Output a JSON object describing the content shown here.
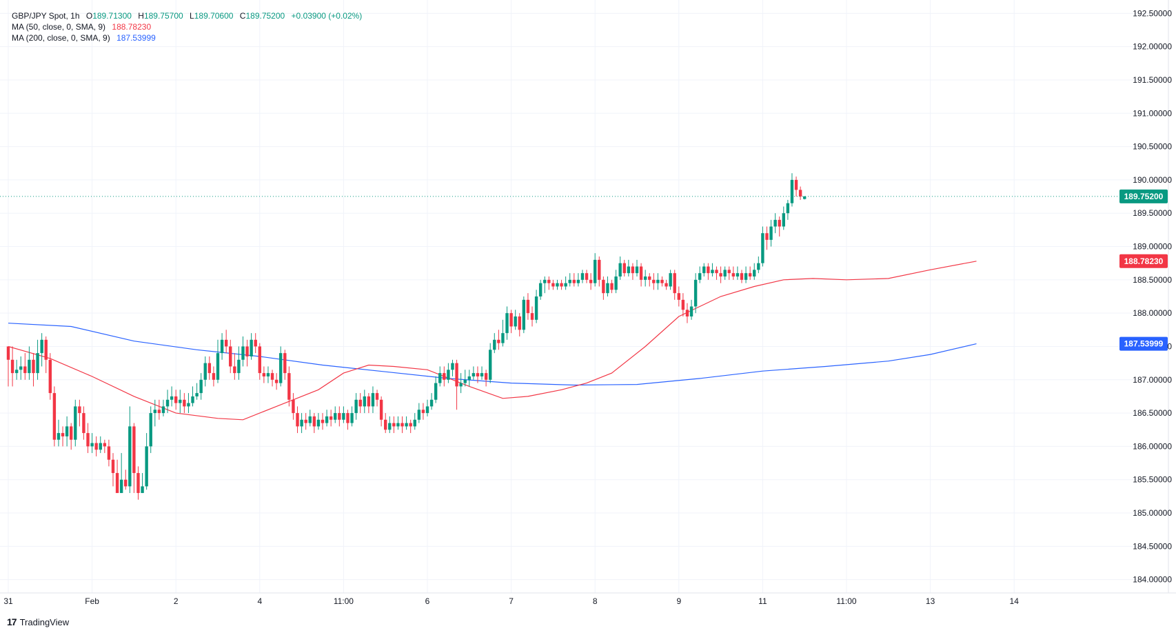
{
  "legend": {
    "symbol": "GBP/JPY Spot, 1h",
    "open_label": "O",
    "open": "189.71300",
    "high_label": "H",
    "high": "189.75700",
    "low_label": "L",
    "low": "189.70600",
    "close_label": "C",
    "close": "189.75200",
    "change": "+0.03900 (+0.02%)",
    "ma50_label": "MA (50, close, 0, SMA, 9)",
    "ma50_value": "188.78230",
    "ma200_label": "MA (200, close, 0, SMA, 9)",
    "ma200_value": "187.53999"
  },
  "brand": {
    "logo": "17",
    "name": "TradingView"
  },
  "colors": {
    "up": "#089981",
    "down": "#f23645",
    "ma50": "#f23645",
    "ma200": "#2962ff",
    "grid": "#f0f3fa"
  },
  "chart_data": {
    "type": "candlestick",
    "title": "GBP/JPY Spot, 1h",
    "ylim": [
      183.8,
      192.7
    ],
    "y_ticks": [
      "192.50000",
      "192.00000",
      "191.50000",
      "191.00000",
      "190.50000",
      "190.00000",
      "189.50000",
      "189.00000",
      "188.50000",
      "188.00000",
      "187.50000",
      "187.00000",
      "186.50000",
      "186.00000",
      "185.50000",
      "185.00000",
      "184.50000",
      "184.00000"
    ],
    "x_tick_labels": [
      "31",
      "Feb",
      "2",
      "4",
      "11:00",
      "6",
      "7",
      "8",
      "9",
      "11",
      "11:00",
      "13",
      "14"
    ],
    "x_tick_bar_index": [
      0,
      20,
      40,
      60,
      80,
      100,
      120,
      140,
      160,
      180,
      200,
      220,
      240
    ],
    "last_price": 189.752,
    "last_price_label": "189.75200",
    "series": [
      {
        "name": "MA (50, close, 0, SMA, 9)",
        "last_label": "188.78230",
        "points": [
          [
            0,
            187.5
          ],
          [
            10,
            187.32
          ],
          [
            20,
            187.05
          ],
          [
            30,
            186.75
          ],
          [
            40,
            186.5
          ],
          [
            50,
            186.42
          ],
          [
            56,
            186.4
          ],
          [
            64,
            186.6
          ],
          [
            74,
            186.85
          ],
          [
            80,
            187.1
          ],
          [
            86,
            187.22
          ],
          [
            92,
            187.2
          ],
          [
            100,
            187.15
          ],
          [
            110,
            186.9
          ],
          [
            118,
            186.72
          ],
          [
            124,
            186.75
          ],
          [
            132,
            186.85
          ],
          [
            138,
            186.95
          ],
          [
            144,
            187.1
          ],
          [
            152,
            187.5
          ],
          [
            160,
            187.95
          ],
          [
            170,
            188.25
          ],
          [
            178,
            188.4
          ],
          [
            185,
            188.5
          ],
          [
            192,
            188.52
          ],
          [
            200,
            188.5
          ],
          [
            210,
            188.52
          ],
          [
            220,
            188.65
          ],
          [
            231,
            188.78
          ]
        ]
      },
      {
        "name": "MA (200, close, 0, SMA, 9)",
        "last_label": "187.53999",
        "points": [
          [
            0,
            187.85
          ],
          [
            15,
            187.8
          ],
          [
            30,
            187.58
          ],
          [
            45,
            187.45
          ],
          [
            60,
            187.35
          ],
          [
            75,
            187.22
          ],
          [
            90,
            187.12
          ],
          [
            105,
            187.02
          ],
          [
            120,
            186.95
          ],
          [
            135,
            186.92
          ],
          [
            150,
            186.93
          ],
          [
            165,
            187.02
          ],
          [
            180,
            187.13
          ],
          [
            195,
            187.2
          ],
          [
            210,
            187.28
          ],
          [
            220,
            187.38
          ],
          [
            231,
            187.54
          ]
        ]
      }
    ],
    "candles": [
      [
        187.5,
        187.3,
        187.4,
        186.9
      ],
      [
        187.3,
        187.1,
        187.5,
        186.9
      ],
      [
        187.1,
        187.15,
        187.3,
        187.0
      ],
      [
        187.15,
        187.2,
        187.35,
        187.0
      ],
      [
        187.2,
        187.1,
        187.4,
        187.0
      ],
      [
        187.1,
        187.3,
        187.5,
        187.0
      ],
      [
        187.3,
        187.1,
        187.4,
        186.9
      ],
      [
        187.1,
        187.4,
        187.6,
        187.0
      ],
      [
        187.4,
        187.6,
        187.7,
        187.2
      ],
      [
        187.6,
        187.3,
        187.65,
        187.1
      ],
      [
        187.3,
        186.8,
        187.4,
        186.7
      ],
      [
        186.8,
        186.1,
        186.9,
        186.0
      ],
      [
        186.1,
        186.2,
        186.4,
        186.0
      ],
      [
        186.2,
        186.15,
        186.3,
        186.0
      ],
      [
        186.15,
        186.3,
        186.45,
        186.0
      ],
      [
        186.3,
        186.1,
        186.35,
        185.95
      ],
      [
        186.1,
        186.6,
        186.7,
        186.0
      ],
      [
        186.6,
        186.5,
        186.7,
        186.3
      ],
      [
        186.5,
        186.2,
        186.6,
        186.1
      ],
      [
        186.2,
        186.0,
        186.35,
        185.9
      ],
      [
        186.0,
        186.05,
        186.2,
        185.9
      ],
      [
        186.05,
        185.95,
        186.15,
        185.85
      ],
      [
        185.95,
        186.05,
        186.15,
        185.9
      ],
      [
        186.05,
        186.0,
        186.1,
        185.9
      ],
      [
        186.0,
        185.8,
        186.1,
        185.7
      ],
      [
        185.8,
        185.6,
        185.9,
        185.4
      ],
      [
        185.6,
        185.3,
        185.8,
        185.3
      ],
      [
        185.3,
        185.5,
        185.9,
        185.3
      ],
      [
        185.5,
        185.4,
        185.65,
        185.35
      ],
      [
        185.4,
        186.3,
        186.6,
        185.3
      ],
      [
        186.3,
        185.6,
        186.35,
        185.3
      ],
      [
        185.6,
        185.3,
        185.7,
        185.2
      ],
      [
        185.3,
        185.4,
        185.6,
        185.3
      ],
      [
        185.4,
        186.0,
        186.2,
        185.35
      ],
      [
        186.0,
        186.5,
        186.6,
        185.9
      ],
      [
        186.5,
        186.55,
        186.7,
        186.3
      ],
      [
        186.55,
        186.5,
        186.7,
        186.4
      ],
      [
        186.5,
        186.6,
        186.7,
        186.45
      ],
      [
        186.6,
        186.7,
        186.85,
        186.5
      ],
      [
        186.7,
        186.75,
        186.9,
        186.6
      ],
      [
        186.75,
        186.65,
        186.85,
        186.55
      ],
      [
        186.65,
        186.7,
        186.85,
        186.5
      ],
      [
        186.7,
        186.6,
        186.8,
        186.5
      ],
      [
        186.6,
        186.65,
        186.8,
        186.5
      ],
      [
        186.65,
        186.75,
        186.9,
        186.6
      ],
      [
        186.75,
        186.8,
        186.95,
        186.7
      ],
      [
        186.8,
        187.0,
        187.1,
        186.7
      ],
      [
        187.0,
        187.25,
        187.35,
        186.9
      ],
      [
        187.25,
        187.1,
        187.35,
        187.0
      ],
      [
        187.1,
        187.0,
        187.2,
        186.9
      ],
      [
        187.0,
        187.4,
        187.6,
        186.95
      ],
      [
        187.4,
        187.6,
        187.7,
        187.3
      ],
      [
        187.6,
        187.5,
        187.75,
        187.4
      ],
      [
        187.5,
        187.2,
        187.6,
        187.1
      ],
      [
        187.2,
        187.1,
        187.4,
        187.0
      ],
      [
        187.1,
        187.3,
        187.5,
        187.0
      ],
      [
        187.3,
        187.5,
        187.65,
        187.2
      ],
      [
        187.5,
        187.35,
        187.6,
        187.2
      ],
      [
        187.35,
        187.6,
        187.7,
        187.3
      ],
      [
        187.6,
        187.5,
        187.7,
        187.4
      ],
      [
        187.5,
        187.1,
        187.55,
        187.0
      ],
      [
        187.1,
        187.05,
        187.2,
        186.95
      ],
      [
        187.05,
        187.1,
        187.2,
        186.95
      ],
      [
        187.1,
        187.0,
        187.15,
        186.9
      ],
      [
        187.0,
        186.95,
        187.1,
        186.85
      ],
      [
        186.95,
        187.4,
        187.5,
        186.9
      ],
      [
        187.4,
        187.1,
        187.45,
        187.0
      ],
      [
        187.1,
        186.7,
        187.2,
        186.6
      ],
      [
        186.7,
        186.5,
        186.8,
        186.4
      ],
      [
        186.5,
        186.3,
        186.6,
        186.2
      ],
      [
        186.3,
        186.4,
        186.5,
        186.2
      ],
      [
        186.4,
        186.35,
        186.5,
        186.25
      ],
      [
        186.35,
        186.45,
        186.55,
        186.3
      ],
      [
        186.45,
        186.3,
        186.5,
        186.2
      ],
      [
        186.3,
        186.4,
        186.5,
        186.25
      ],
      [
        186.4,
        186.35,
        186.5,
        186.25
      ],
      [
        186.35,
        186.45,
        186.55,
        186.3
      ],
      [
        186.45,
        186.4,
        186.55,
        186.3
      ],
      [
        186.4,
        186.5,
        186.6,
        186.35
      ],
      [
        186.5,
        186.4,
        186.6,
        186.3
      ],
      [
        186.4,
        186.5,
        186.6,
        186.35
      ],
      [
        186.5,
        186.35,
        186.55,
        186.25
      ],
      [
        186.35,
        186.5,
        186.6,
        186.3
      ],
      [
        186.5,
        186.7,
        186.8,
        186.4
      ],
      [
        186.7,
        186.6,
        186.8,
        186.5
      ],
      [
        186.6,
        186.75,
        186.85,
        186.5
      ],
      [
        186.75,
        186.6,
        186.8,
        186.5
      ],
      [
        186.6,
        186.8,
        186.9,
        186.5
      ],
      [
        186.8,
        186.7,
        186.85,
        186.6
      ],
      [
        186.7,
        186.4,
        186.75,
        186.3
      ],
      [
        186.4,
        186.25,
        186.5,
        186.2
      ],
      [
        186.25,
        186.35,
        186.45,
        186.2
      ],
      [
        186.35,
        186.3,
        186.45,
        186.2
      ],
      [
        186.3,
        186.35,
        186.45,
        186.25
      ],
      [
        186.35,
        186.3,
        186.45,
        186.2
      ],
      [
        186.3,
        186.35,
        186.45,
        186.25
      ],
      [
        186.35,
        186.3,
        186.4,
        186.2
      ],
      [
        186.3,
        186.4,
        186.5,
        186.25
      ],
      [
        186.4,
        186.55,
        186.65,
        186.35
      ],
      [
        186.55,
        186.5,
        186.65,
        186.4
      ],
      [
        186.5,
        186.6,
        186.7,
        186.45
      ],
      [
        186.6,
        186.7,
        186.8,
        186.55
      ],
      [
        186.7,
        186.95,
        187.05,
        186.65
      ],
      [
        186.95,
        187.1,
        187.2,
        186.9
      ],
      [
        187.1,
        187.0,
        187.2,
        186.9
      ],
      [
        187.0,
        187.15,
        187.25,
        186.95
      ],
      [
        187.15,
        187.25,
        187.3,
        187.05
      ],
      [
        187.25,
        186.9,
        187.3,
        186.55
      ],
      [
        186.9,
        186.95,
        187.1,
        186.8
      ],
      [
        186.95,
        187.0,
        187.15,
        186.9
      ],
      [
        187.0,
        187.05,
        187.15,
        186.9
      ],
      [
        187.05,
        187.1,
        187.2,
        187.0
      ],
      [
        187.1,
        187.05,
        187.2,
        186.95
      ],
      [
        187.05,
        187.1,
        187.2,
        187.0
      ],
      [
        187.1,
        187.0,
        187.15,
        186.9
      ],
      [
        187.0,
        187.45,
        187.55,
        186.95
      ],
      [
        187.45,
        187.6,
        187.7,
        187.4
      ],
      [
        187.6,
        187.55,
        187.75,
        187.45
      ],
      [
        187.55,
        187.7,
        187.9,
        187.5
      ],
      [
        187.7,
        188.0,
        188.1,
        187.6
      ],
      [
        188.0,
        187.8,
        188.05,
        187.7
      ],
      [
        187.8,
        187.95,
        188.05,
        187.75
      ],
      [
        187.95,
        187.75,
        188.0,
        187.65
      ],
      [
        187.75,
        188.2,
        188.25,
        187.7
      ],
      [
        188.2,
        188.0,
        188.3,
        187.9
      ],
      [
        188.0,
        187.9,
        188.1,
        187.8
      ],
      [
        187.9,
        188.25,
        188.35,
        187.85
      ],
      [
        188.25,
        188.45,
        188.5,
        188.2
      ],
      [
        188.45,
        188.5,
        188.55,
        188.3
      ],
      [
        188.5,
        188.45,
        188.55,
        188.35
      ],
      [
        188.45,
        188.4,
        188.5,
        188.35
      ],
      [
        188.4,
        188.45,
        188.5,
        188.35
      ],
      [
        188.45,
        188.4,
        188.5,
        188.35
      ],
      [
        188.4,
        188.45,
        188.55,
        188.35
      ],
      [
        188.45,
        188.5,
        188.6,
        188.4
      ],
      [
        188.5,
        188.45,
        188.6,
        188.4
      ],
      [
        188.45,
        188.5,
        188.6,
        188.4
      ],
      [
        188.5,
        188.6,
        188.65,
        188.45
      ],
      [
        188.6,
        188.5,
        188.65,
        188.45
      ],
      [
        188.5,
        188.45,
        188.6,
        188.35
      ],
      [
        188.45,
        188.8,
        188.9,
        188.4
      ],
      [
        188.8,
        188.5,
        188.85,
        188.4
      ],
      [
        188.5,
        188.3,
        188.55,
        188.2
      ],
      [
        188.3,
        188.45,
        188.55,
        188.25
      ],
      [
        188.45,
        188.35,
        188.5,
        188.3
      ],
      [
        188.35,
        188.55,
        188.65,
        188.3
      ],
      [
        188.55,
        188.75,
        188.85,
        188.5
      ],
      [
        188.75,
        188.6,
        188.8,
        188.55
      ],
      [
        188.6,
        188.7,
        188.8,
        188.55
      ],
      [
        188.7,
        188.6,
        188.75,
        188.5
      ],
      [
        188.6,
        188.7,
        188.8,
        188.55
      ],
      [
        188.7,
        188.5,
        188.75,
        188.4
      ],
      [
        188.5,
        188.55,
        188.65,
        188.4
      ],
      [
        188.55,
        188.5,
        188.6,
        188.4
      ],
      [
        188.5,
        188.45,
        188.6,
        188.35
      ],
      [
        188.45,
        188.5,
        188.6,
        188.35
      ],
      [
        188.5,
        188.45,
        188.55,
        188.4
      ],
      [
        188.45,
        188.4,
        188.5,
        188.35
      ],
      [
        188.4,
        188.6,
        188.65,
        188.35
      ],
      [
        188.6,
        188.3,
        188.65,
        188.2
      ],
      [
        188.3,
        188.2,
        188.4,
        188.1
      ],
      [
        188.2,
        188.05,
        188.3,
        187.95
      ],
      [
        188.05,
        187.95,
        188.15,
        187.85
      ],
      [
        187.95,
        188.1,
        188.2,
        187.9
      ],
      [
        188.1,
        188.5,
        188.6,
        188.0
      ],
      [
        188.5,
        188.6,
        188.7,
        188.45
      ],
      [
        188.6,
        188.7,
        188.75,
        188.55
      ],
      [
        188.7,
        188.6,
        188.75,
        188.5
      ],
      [
        188.6,
        188.65,
        188.75,
        188.55
      ],
      [
        188.65,
        188.6,
        188.7,
        188.5
      ],
      [
        188.6,
        188.55,
        188.7,
        188.45
      ],
      [
        188.55,
        188.65,
        188.7,
        188.5
      ],
      [
        188.65,
        188.6,
        188.7,
        188.5
      ],
      [
        188.6,
        188.55,
        188.7,
        188.5
      ],
      [
        188.55,
        188.6,
        188.7,
        188.5
      ],
      [
        188.6,
        188.5,
        188.65,
        188.45
      ],
      [
        188.5,
        188.6,
        188.7,
        188.45
      ],
      [
        188.6,
        188.55,
        188.7,
        188.5
      ],
      [
        188.55,
        188.65,
        188.75,
        188.5
      ],
      [
        188.65,
        188.75,
        188.85,
        188.6
      ],
      [
        188.75,
        189.2,
        189.3,
        188.7
      ],
      [
        189.2,
        189.1,
        189.3,
        188.95
      ],
      [
        189.1,
        189.3,
        189.4,
        189.0
      ],
      [
        189.3,
        189.4,
        189.5,
        189.2
      ],
      [
        189.4,
        189.3,
        189.45,
        189.15
      ],
      [
        189.3,
        189.5,
        189.6,
        189.25
      ],
      [
        189.5,
        189.65,
        189.7,
        189.4
      ],
      [
        189.65,
        190.0,
        190.1,
        189.6
      ],
      [
        190.0,
        189.85,
        190.05,
        189.75
      ],
      [
        189.85,
        189.75,
        189.9,
        189.7
      ],
      [
        189.713,
        189.752,
        189.757,
        189.706
      ]
    ]
  }
}
